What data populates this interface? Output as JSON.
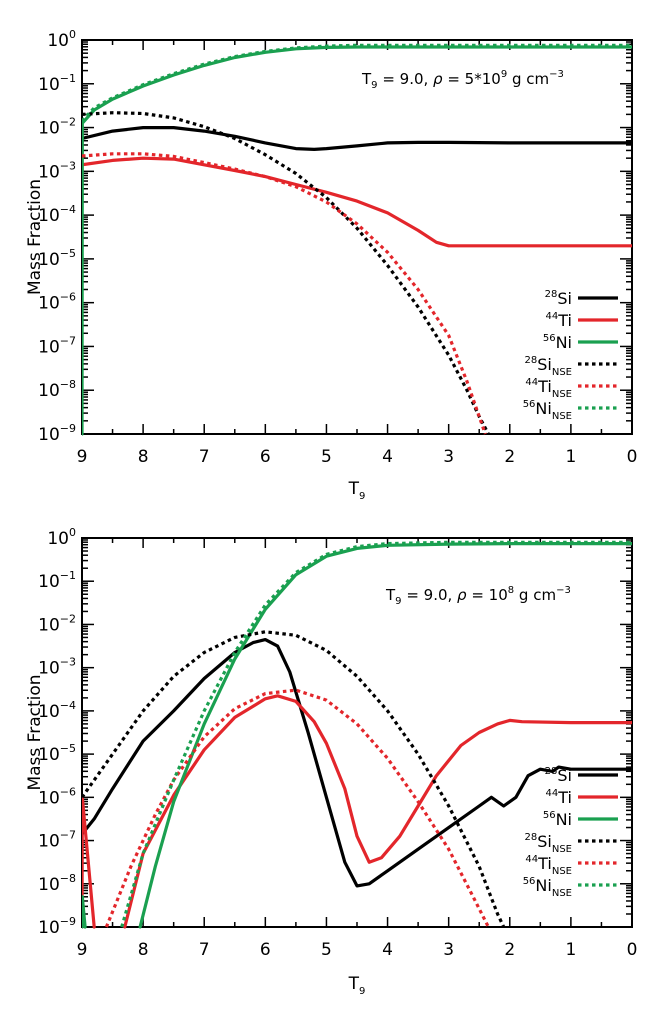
{
  "colors": {
    "Si": "#000000",
    "Ti": "#e3262b",
    "Ni": "#1aa050"
  },
  "chart_data": [
    {
      "type": "line",
      "scale": "log-y",
      "xlim": [
        9,
        0
      ],
      "ylim_exp": [
        -9,
        0
      ],
      "xticks": [
        "9",
        "8",
        "7",
        "6",
        "5",
        "4",
        "3",
        "2",
        "1",
        "0"
      ],
      "xlabel": "T",
      "xlabel_sub": "9",
      "ylabel": "Mass Fraction",
      "annotation": {
        "t_label": "T",
        "t_sub": "9",
        "t_val": "= 9.0,",
        "rho_label": "ρ",
        "rho_val": "= 5*10",
        "rho_exp": "9",
        "units": "g cm",
        "units_exp": "−3"
      },
      "legend": [
        {
          "mass": "28",
          "elem": "Si",
          "sub": "",
          "style": "solid",
          "color": "Si"
        },
        {
          "mass": "44",
          "elem": "Ti",
          "sub": "",
          "style": "solid",
          "color": "Ti"
        },
        {
          "mass": "56",
          "elem": "Ni",
          "sub": "",
          "style": "solid",
          "color": "Ni"
        },
        {
          "mass": "28",
          "elem": "Si",
          "sub": "NSE",
          "style": "dotted",
          "color": "Si"
        },
        {
          "mass": "44",
          "elem": "Ti",
          "sub": "NSE",
          "style": "dotted",
          "color": "Ti"
        },
        {
          "mass": "56",
          "elem": "Ni",
          "sub": "NSE",
          "style": "dotted",
          "color": "Ni"
        }
      ],
      "series": [
        {
          "name": "28Si",
          "color": "Si",
          "style": "solid",
          "points": [
            [
              9,
              -2.25
            ],
            [
              8.5,
              -2.08
            ],
            [
              8,
              -2.0
            ],
            [
              7.5,
              -2.0
            ],
            [
              7,
              -2.08
            ],
            [
              6.5,
              -2.2
            ],
            [
              6,
              -2.35
            ],
            [
              5.5,
              -2.48
            ],
            [
              5.2,
              -2.5
            ],
            [
              5,
              -2.48
            ],
            [
              4.5,
              -2.42
            ],
            [
              4,
              -2.35
            ],
            [
              3.5,
              -2.34
            ],
            [
              3,
              -2.34
            ],
            [
              2,
              -2.35
            ],
            [
              1,
              -2.35
            ],
            [
              0,
              -2.35
            ]
          ]
        },
        {
          "name": "44Ti",
          "color": "Ti",
          "style": "solid",
          "points": [
            [
              9,
              -2.85
            ],
            [
              8.5,
              -2.75
            ],
            [
              8,
              -2.7
            ],
            [
              7.5,
              -2.72
            ],
            [
              7,
              -2.85
            ],
            [
              6.5,
              -2.98
            ],
            [
              6,
              -3.12
            ],
            [
              5.5,
              -3.3
            ],
            [
              5,
              -3.48
            ],
            [
              4.5,
              -3.68
            ],
            [
              4,
              -3.95
            ],
            [
              3.5,
              -4.35
            ],
            [
              3.2,
              -4.62
            ],
            [
              3,
              -4.7
            ],
            [
              2,
              -4.7
            ],
            [
              1,
              -4.7
            ],
            [
              0,
              -4.7
            ]
          ]
        },
        {
          "name": "56Ni",
          "color": "Ni",
          "style": "solid",
          "points": [
            [
              9,
              -9.0
            ],
            [
              8.995,
              -1.9
            ],
            [
              8.8,
              -1.6
            ],
            [
              8.5,
              -1.35
            ],
            [
              8,
              -1.05
            ],
            [
              7.5,
              -0.8
            ],
            [
              7,
              -0.58
            ],
            [
              6.5,
              -0.4
            ],
            [
              6,
              -0.28
            ],
            [
              5.5,
              -0.2
            ],
            [
              5,
              -0.17
            ],
            [
              4.5,
              -0.16
            ],
            [
              4,
              -0.16
            ],
            [
              3,
              -0.16
            ],
            [
              2,
              -0.16
            ],
            [
              1,
              -0.16
            ],
            [
              0,
              -0.16
            ]
          ]
        },
        {
          "name": "28Si NSE",
          "color": "Si",
          "style": "dotted",
          "points": [
            [
              9,
              -1.7
            ],
            [
              8.5,
              -1.66
            ],
            [
              8,
              -1.68
            ],
            [
              7.5,
              -1.78
            ],
            [
              7,
              -1.98
            ],
            [
              6.5,
              -2.25
            ],
            [
              6,
              -2.62
            ],
            [
              5.5,
              -3.05
            ],
            [
              5,
              -3.6
            ],
            [
              4.5,
              -4.3
            ],
            [
              4,
              -5.15
            ],
            [
              3.5,
              -6.1
            ],
            [
              3,
              -7.2
            ],
            [
              2.7,
              -8.0
            ],
            [
              2.5,
              -8.6
            ],
            [
              2.35,
              -9.0
            ]
          ]
        },
        {
          "name": "44Ti NSE",
          "color": "Ti",
          "style": "dotted",
          "points": [
            [
              9,
              -2.65
            ],
            [
              8.5,
              -2.6
            ],
            [
              8,
              -2.6
            ],
            [
              7.5,
              -2.66
            ],
            [
              7,
              -2.8
            ],
            [
              6.5,
              -2.95
            ],
            [
              6,
              -3.12
            ],
            [
              5.5,
              -3.35
            ],
            [
              5,
              -3.7
            ],
            [
              4.5,
              -4.2
            ],
            [
              4,
              -4.85
            ],
            [
              3.5,
              -5.7
            ],
            [
              3,
              -6.75
            ],
            [
              2.7,
              -7.8
            ],
            [
              2.5,
              -8.6
            ],
            [
              2.4,
              -9.0
            ]
          ]
        },
        {
          "name": "56Ni NSE",
          "color": "Ni",
          "style": "dotted",
          "points": [
            [
              9,
              -1.85
            ],
            [
              8.8,
              -1.55
            ],
            [
              8.5,
              -1.32
            ],
            [
              8,
              -1.02
            ],
            [
              7.5,
              -0.77
            ],
            [
              7,
              -0.55
            ],
            [
              6.5,
              -0.38
            ],
            [
              6,
              -0.26
            ],
            [
              5.5,
              -0.18
            ],
            [
              5,
              -0.14
            ],
            [
              4.5,
              -0.12
            ],
            [
              4,
              -0.12
            ],
            [
              3,
              -0.12
            ],
            [
              2,
              -0.12
            ],
            [
              1,
              -0.12
            ],
            [
              0,
              -0.12
            ]
          ]
        }
      ]
    },
    {
      "type": "line",
      "scale": "log-y",
      "xlim": [
        9,
        0
      ],
      "ylim_exp": [
        -9,
        0
      ],
      "xticks": [
        "9",
        "8",
        "7",
        "6",
        "5",
        "4",
        "3",
        "2",
        "1",
        "0"
      ],
      "xlabel": "T",
      "xlabel_sub": "9",
      "ylabel": "Mass Fraction",
      "annotation": {
        "t_label": "T",
        "t_sub": "9",
        "t_val": "= 9.0,",
        "rho_label": "ρ",
        "rho_val": "= 10",
        "rho_exp": "8",
        "units": "g cm",
        "units_exp": "−3"
      },
      "legend": [
        {
          "mass": "28",
          "elem": "Si",
          "sub": "",
          "style": "solid",
          "color": "Si"
        },
        {
          "mass": "44",
          "elem": "Ti",
          "sub": "",
          "style": "solid",
          "color": "Ti"
        },
        {
          "mass": "56",
          "elem": "Ni",
          "sub": "",
          "style": "solid",
          "color": "Ni"
        },
        {
          "mass": "28",
          "elem": "Si",
          "sub": "NSE",
          "style": "dotted",
          "color": "Si"
        },
        {
          "mass": "44",
          "elem": "Ti",
          "sub": "NSE",
          "style": "dotted",
          "color": "Ti"
        },
        {
          "mass": "56",
          "elem": "Ni",
          "sub": "NSE",
          "style": "dotted",
          "color": "Ni"
        }
      ],
      "series": [
        {
          "name": "28Si",
          "color": "Si",
          "style": "solid",
          "points": [
            [
              9,
              -6.85
            ],
            [
              8.8,
              -6.5
            ],
            [
              8.5,
              -5.8
            ],
            [
              8,
              -4.7
            ],
            [
              7.5,
              -4.0
            ],
            [
              7,
              -3.25
            ],
            [
              6.5,
              -2.65
            ],
            [
              6.2,
              -2.42
            ],
            [
              6,
              -2.35
            ],
            [
              5.8,
              -2.5
            ],
            [
              5.6,
              -3.1
            ],
            [
              5.3,
              -4.5
            ],
            [
              5,
              -6.0
            ],
            [
              4.7,
              -7.5
            ],
            [
              4.5,
              -8.05
            ],
            [
              4.3,
              -8.0
            ],
            [
              4,
              -7.7
            ],
            [
              3.5,
              -7.2
            ],
            [
              3,
              -6.7
            ],
            [
              2.5,
              -6.2
            ],
            [
              2.3,
              -6.0
            ],
            [
              2.1,
              -6.2
            ],
            [
              1.9,
              -6.0
            ],
            [
              1.7,
              -5.5
            ],
            [
              1.5,
              -5.35
            ],
            [
              1.3,
              -5.4
            ],
            [
              1.2,
              -5.3
            ],
            [
              1,
              -5.35
            ],
            [
              0,
              -5.35
            ]
          ]
        },
        {
          "name": "44Ti",
          "color": "Ti",
          "style": "solid",
          "points": [
            [
              9,
              -9.0
            ],
            [
              8.995,
              -6.0
            ],
            [
              8.8,
              -9.0
            ]
          ]
        },
        {
          "name": "44Ti main",
          "color": "Ti",
          "style": "solid",
          "points": [
            [
              8.3,
              -9.0
            ],
            [
              8.0,
              -7.3
            ],
            [
              7.5,
              -5.95
            ],
            [
              7,
              -4.9
            ],
            [
              6.5,
              -4.15
            ],
            [
              6,
              -3.72
            ],
            [
              5.8,
              -3.65
            ],
            [
              5.5,
              -3.78
            ],
            [
              5.2,
              -4.25
            ],
            [
              5,
              -4.75
            ],
            [
              4.7,
              -5.8
            ],
            [
              4.5,
              -6.9
            ],
            [
              4.3,
              -7.5
            ],
            [
              4.1,
              -7.4
            ],
            [
              3.8,
              -6.9
            ],
            [
              3.5,
              -6.2
            ],
            [
              3.2,
              -5.5
            ],
            [
              2.8,
              -4.8
            ],
            [
              2.5,
              -4.5
            ],
            [
              2.2,
              -4.3
            ],
            [
              2,
              -4.22
            ],
            [
              1.8,
              -4.25
            ],
            [
              1,
              -4.27
            ],
            [
              0,
              -4.27
            ]
          ]
        },
        {
          "name": "56Ni",
          "color": "Ni",
          "style": "solid",
          "points": [
            [
              9,
              -9.0
            ],
            [
              8.995,
              -8.3
            ],
            [
              8.95,
              -9.0
            ]
          ]
        },
        {
          "name": "56Ni main",
          "color": "Ni",
          "style": "solid",
          "points": [
            [
              8.05,
              -9.0
            ],
            [
              7.8,
              -7.6
            ],
            [
              7.5,
              -6.1
            ],
            [
              7,
              -4.3
            ],
            [
              6.5,
              -2.8
            ],
            [
              6,
              -1.65
            ],
            [
              5.5,
              -0.85
            ],
            [
              5,
              -0.42
            ],
            [
              4.5,
              -0.24
            ],
            [
              4,
              -0.17
            ],
            [
              3,
              -0.14
            ],
            [
              2,
              -0.13
            ],
            [
              1,
              -0.13
            ],
            [
              0,
              -0.13
            ]
          ]
        },
        {
          "name": "28Si NSE",
          "color": "Si",
          "style": "dotted",
          "points": [
            [
              9,
              -6.0
            ],
            [
              8.5,
              -5.0
            ],
            [
              8,
              -4.0
            ],
            [
              7.5,
              -3.2
            ],
            [
              7,
              -2.65
            ],
            [
              6.5,
              -2.3
            ],
            [
              6,
              -2.17
            ],
            [
              5.5,
              -2.25
            ],
            [
              5,
              -2.6
            ],
            [
              4.5,
              -3.2
            ],
            [
              4,
              -4.0
            ],
            [
              3.5,
              -5.0
            ],
            [
              3,
              -6.2
            ],
            [
              2.5,
              -7.6
            ],
            [
              2.2,
              -8.7
            ],
            [
              2.1,
              -9.0
            ]
          ]
        },
        {
          "name": "44Ti NSE",
          "color": "Ti",
          "style": "dotted",
          "points": [
            [
              8.6,
              -9.0
            ],
            [
              8.2,
              -7.6
            ],
            [
              7.8,
              -6.4
            ],
            [
              7.5,
              -5.6
            ],
            [
              7,
              -4.6
            ],
            [
              6.5,
              -3.95
            ],
            [
              6,
              -3.6
            ],
            [
              5.5,
              -3.52
            ],
            [
              5,
              -3.75
            ],
            [
              4.5,
              -4.3
            ],
            [
              4,
              -5.1
            ],
            [
              3.5,
              -6.1
            ],
            [
              3,
              -7.2
            ],
            [
              2.6,
              -8.3
            ],
            [
              2.35,
              -9.0
            ]
          ]
        },
        {
          "name": "56Ni NSE",
          "color": "Ni",
          "style": "dotted",
          "points": [
            [
              8.35,
              -9.0
            ],
            [
              8,
              -7.3
            ],
            [
              7.5,
              -5.6
            ],
            [
              7,
              -4.0
            ],
            [
              6.5,
              -2.65
            ],
            [
              6,
              -1.55
            ],
            [
              5.5,
              -0.8
            ],
            [
              5,
              -0.38
            ],
            [
              4.5,
              -0.2
            ],
            [
              4,
              -0.13
            ],
            [
              3,
              -0.1
            ],
            [
              2,
              -0.1
            ],
            [
              1,
              -0.1
            ],
            [
              0,
              -0.1
            ]
          ]
        }
      ]
    }
  ]
}
